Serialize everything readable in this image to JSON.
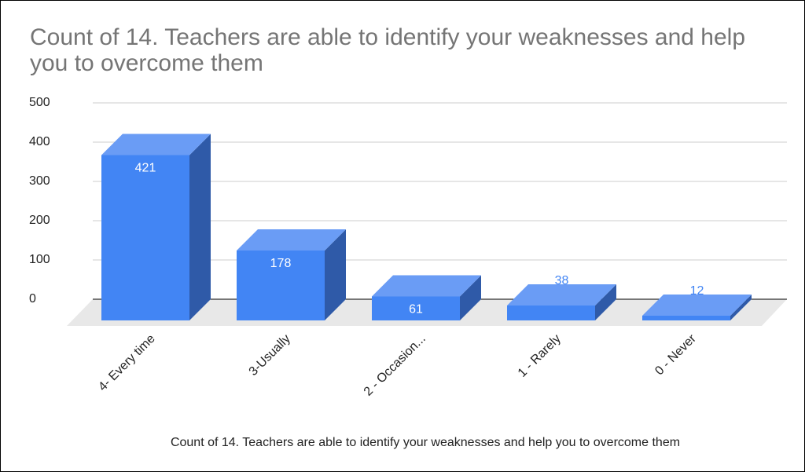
{
  "chart_data": {
    "type": "bar3d",
    "title": "Count of 14. Teachers are able to identify your weaknesses and help you to overcome them",
    "x_label": "Count of 14. Teachers are able to identify your weaknesses and help you to overcome them",
    "categories": [
      "4- Every time",
      "3-Usually",
      "2 - Occasion...",
      "1 - Rarely",
      "0 - Never"
    ],
    "values": [
      421,
      178,
      61,
      38,
      12
    ],
    "color": "#4285f4",
    "ylim": [
      0,
      500
    ],
    "yticks": [
      0,
      100,
      200,
      300,
      400,
      500
    ],
    "grid": true
  }
}
